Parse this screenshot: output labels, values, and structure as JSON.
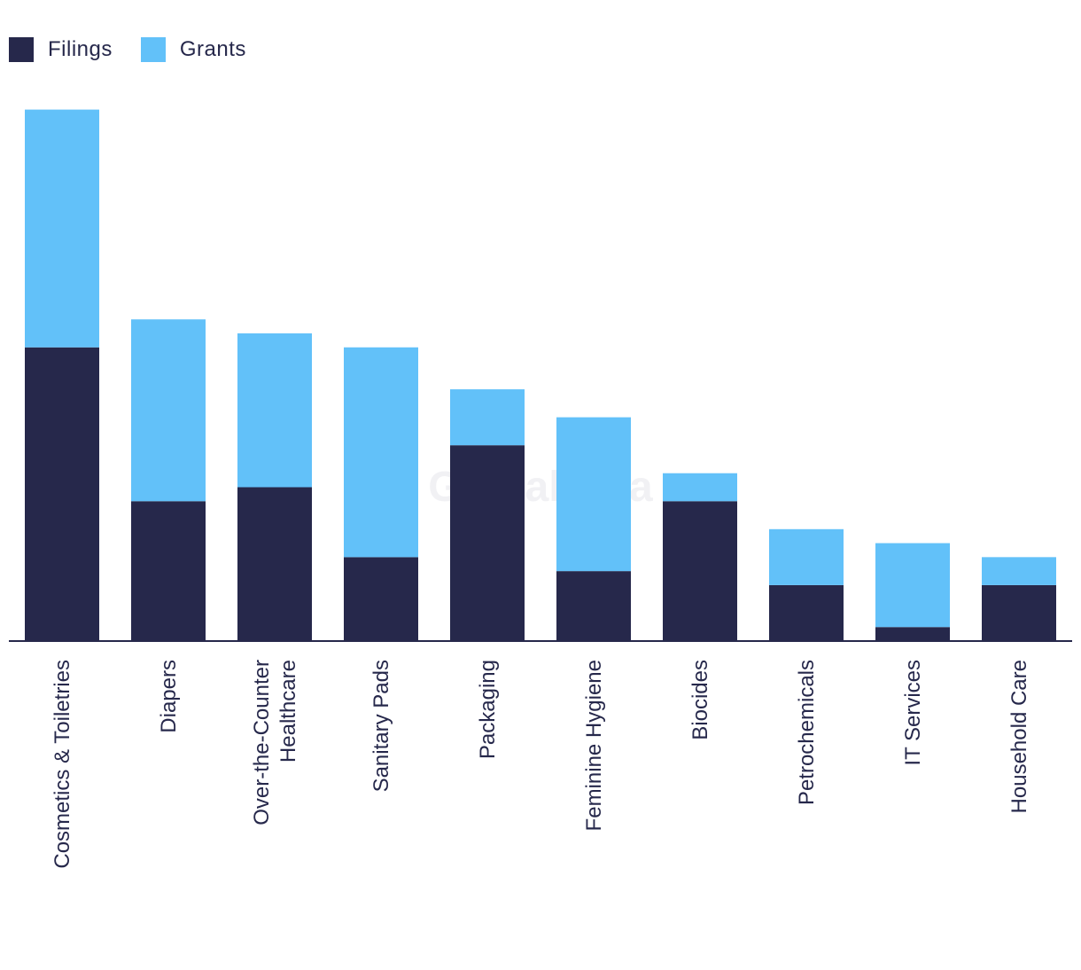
{
  "legend": {
    "filings_label": "Filings",
    "grants_label": "Grants"
  },
  "colors": {
    "filings": "#26284b",
    "grants": "#62c1f9",
    "axis": "#26284b",
    "text": "#26284b"
  },
  "watermark": "GlobalData",
  "chart_data": {
    "type": "bar",
    "stacked": true,
    "title": "",
    "xlabel": "",
    "ylabel": "",
    "ylim": [
      0,
      38
    ],
    "grid": false,
    "legend_position": "top-left",
    "categories": [
      [
        "Cosmetics & Toiletries"
      ],
      [
        "Diapers"
      ],
      [
        "Over-the-Counter",
        "Healthcare"
      ],
      [
        "Sanitary Pads"
      ],
      [
        "Packaging"
      ],
      [
        "Feminine Hygiene"
      ],
      [
        "Biocides"
      ],
      [
        "Petrochemicals"
      ],
      [
        "IT Services"
      ],
      [
        "Household Care"
      ]
    ],
    "series": [
      {
        "name": "Filings",
        "values": [
          21,
          10,
          11,
          6,
          14,
          5,
          10,
          4,
          1,
          4
        ]
      },
      {
        "name": "Grants",
        "values": [
          17,
          13,
          11,
          15,
          4,
          11,
          2,
          4,
          6,
          2
        ]
      }
    ]
  }
}
